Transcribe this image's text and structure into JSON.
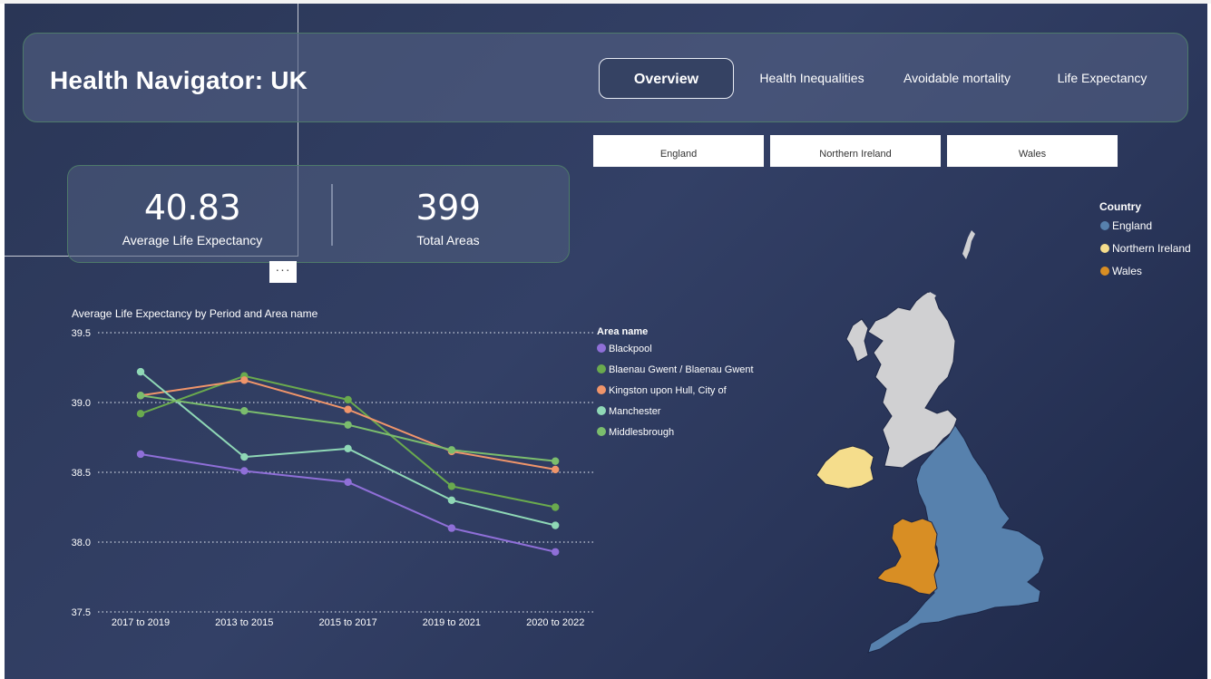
{
  "header": {
    "title": "Health Navigator: UK",
    "tabs": [
      {
        "label": "Overview",
        "active": true
      },
      {
        "label": "Health Inequalities",
        "active": false
      },
      {
        "label": "Avoidable mortality",
        "active": false
      },
      {
        "label": "Life Expectancy",
        "active": false
      }
    ]
  },
  "slicers": [
    "England",
    "Northern Ireland",
    "Wales"
  ],
  "kpis": {
    "avg_life_expectancy": {
      "value": "40.83",
      "label": "Average Life Expectancy"
    },
    "total_areas": {
      "value": "399",
      "label": "Total Areas"
    }
  },
  "more_options": "···",
  "chart_data": {
    "type": "line",
    "title": "Average Life Expectancy by Period and Area name",
    "categories": [
      "2017 to 2019",
      "2013 to 2015",
      "2015 to 2017",
      "2019 to 2021",
      "2020 to 2022"
    ],
    "ylim": [
      37.5,
      39.5
    ],
    "yticks": [
      "39.5",
      "39.0",
      "38.5",
      "38.0",
      "37.5"
    ],
    "grid": true,
    "legend_title": "Area name",
    "legend_position": "right",
    "series": [
      {
        "name": "Blackpool",
        "color": "#8f6fd8",
        "values": [
          38.63,
          38.51,
          38.43,
          38.1,
          37.93
        ]
      },
      {
        "name": "Blaenau Gwent / Blaenau Gwent",
        "color": "#6aaa4e",
        "values": [
          38.92,
          39.19,
          39.02,
          38.4,
          38.25
        ]
      },
      {
        "name": "Kingston upon Hull, City of",
        "color": "#f0956a",
        "values": [
          39.05,
          39.16,
          38.95,
          38.65,
          38.52
        ]
      },
      {
        "name": "Manchester",
        "color": "#8fd8b6",
        "values": [
          39.22,
          38.61,
          38.67,
          38.3,
          38.12
        ]
      },
      {
        "name": "Middlesbrough",
        "color": "#7bbd6d",
        "values": [
          39.05,
          38.94,
          38.84,
          38.66,
          38.58
        ]
      }
    ]
  },
  "map": {
    "legend_title": "Country",
    "countries": [
      {
        "name": "England",
        "color": "#5781ad"
      },
      {
        "name": "Northern Ireland",
        "color": "#f5dd8c"
      },
      {
        "name": "Wales",
        "color": "#d88e24"
      }
    ],
    "other_color": "#d0d0d2"
  }
}
